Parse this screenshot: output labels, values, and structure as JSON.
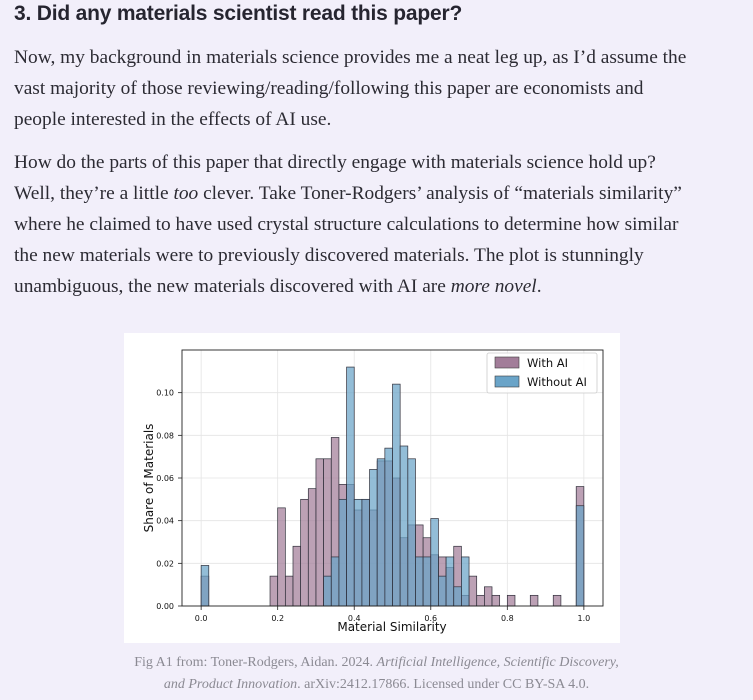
{
  "article": {
    "heading": "3. Did any materials scientist read this paper?",
    "paragraph1": [
      "Now, my background in materials science provides me a neat leg up, as I’d assume the",
      "vast majority of those reviewing/reading/following this paper are economists and",
      "people interested in the effects of AI use."
    ],
    "paragraph2": {
      "line1": "How do the parts of this paper that directly engage with materials science hold up?",
      "line2_pre": "Well, they’re a little ",
      "line2_em": "too",
      "line2_post": " clever. Take Toner-Rodgers’ analysis of “materials similarity”",
      "line3": "where he claimed to have used crystal structure calculations to determine how similar",
      "line4": "the new materials were to previously discovered materials. The plot is stunningly",
      "line5_pre": "unambiguous, the new materials discovered with AI are ",
      "line5_em": "more novel",
      "line5_post": "."
    }
  },
  "caption": {
    "line1_pre": "Fig A1 from: Toner-Rodgers, Aidan. 2024. ",
    "line1_em": "Artificial Intelligence, Scientific Discovery,",
    "line2_em": "and Product Innovation",
    "line2_post": ". arXiv:2412.17866. Licensed under CC BY-SA 4.0."
  },
  "chart_data": {
    "type": "bar",
    "subtype": "overlapping-histogram",
    "title": "",
    "xlabel": "Material Similarity",
    "ylabel": "Share of Materials",
    "xlim": [
      -0.05,
      1.05
    ],
    "ylim": [
      0,
      0.12
    ],
    "x_ticks": [
      "0.0",
      "0.2",
      "0.4",
      "0.6",
      "0.8",
      "1.0"
    ],
    "y_ticks": [
      "0.00",
      "0.02",
      "0.04",
      "0.06",
      "0.08",
      "0.10"
    ],
    "bin_width": 0.02,
    "grid": true,
    "legend_position": "top-right",
    "series": [
      {
        "name": "With AI",
        "color": "#a27d99",
        "bins": [
          {
            "x": 0.0,
            "v": 0.014
          },
          {
            "x": 0.18,
            "v": 0.014
          },
          {
            "x": 0.2,
            "v": 0.046
          },
          {
            "x": 0.22,
            "v": 0.014
          },
          {
            "x": 0.24,
            "v": 0.028
          },
          {
            "x": 0.26,
            "v": 0.05
          },
          {
            "x": 0.28,
            "v": 0.055
          },
          {
            "x": 0.3,
            "v": 0.069
          },
          {
            "x": 0.32,
            "v": 0.069
          },
          {
            "x": 0.34,
            "v": 0.079
          },
          {
            "x": 0.36,
            "v": 0.057
          },
          {
            "x": 0.38,
            "v": 0.057
          },
          {
            "x": 0.4,
            "v": 0.045
          },
          {
            "x": 0.42,
            "v": 0.05
          },
          {
            "x": 0.44,
            "v": 0.045
          },
          {
            "x": 0.46,
            "v": 0.068
          },
          {
            "x": 0.48,
            "v": 0.068
          },
          {
            "x": 0.5,
            "v": 0.06
          },
          {
            "x": 0.52,
            "v": 0.032
          },
          {
            "x": 0.54,
            "v": 0.038
          },
          {
            "x": 0.56,
            "v": 0.038
          },
          {
            "x": 0.58,
            "v": 0.032
          },
          {
            "x": 0.6,
            "v": 0.024
          },
          {
            "x": 0.62,
            "v": 0.023
          },
          {
            "x": 0.64,
            "v": 0.018
          },
          {
            "x": 0.66,
            "v": 0.028
          },
          {
            "x": 0.68,
            "v": 0.005
          },
          {
            "x": 0.7,
            "v": 0.014
          },
          {
            "x": 0.72,
            "v": 0.005
          },
          {
            "x": 0.74,
            "v": 0.009
          },
          {
            "x": 0.76,
            "v": 0.005
          },
          {
            "x": 0.8,
            "v": 0.005
          },
          {
            "x": 0.86,
            "v": 0.005
          },
          {
            "x": 0.92,
            "v": 0.005
          },
          {
            "x": 0.98,
            "v": 0.056
          }
        ]
      },
      {
        "name": "Without AI",
        "color": "#6aa4c8",
        "bins": [
          {
            "x": 0.0,
            "v": 0.019
          },
          {
            "x": 0.32,
            "v": 0.014
          },
          {
            "x": 0.34,
            "v": 0.023
          },
          {
            "x": 0.36,
            "v": 0.05
          },
          {
            "x": 0.38,
            "v": 0.112
          },
          {
            "x": 0.4,
            "v": 0.05
          },
          {
            "x": 0.42,
            "v": 0.05
          },
          {
            "x": 0.44,
            "v": 0.064
          },
          {
            "x": 0.46,
            "v": 0.069
          },
          {
            "x": 0.48,
            "v": 0.074
          },
          {
            "x": 0.5,
            "v": 0.104
          },
          {
            "x": 0.52,
            "v": 0.075
          },
          {
            "x": 0.54,
            "v": 0.069
          },
          {
            "x": 0.56,
            "v": 0.023
          },
          {
            "x": 0.58,
            "v": 0.023
          },
          {
            "x": 0.6,
            "v": 0.041
          },
          {
            "x": 0.62,
            "v": 0.014
          },
          {
            "x": 0.64,
            "v": 0.023
          },
          {
            "x": 0.66,
            "v": 0.009
          },
          {
            "x": 0.68,
            "v": 0.023
          },
          {
            "x": 0.98,
            "v": 0.047
          }
        ]
      }
    ]
  }
}
